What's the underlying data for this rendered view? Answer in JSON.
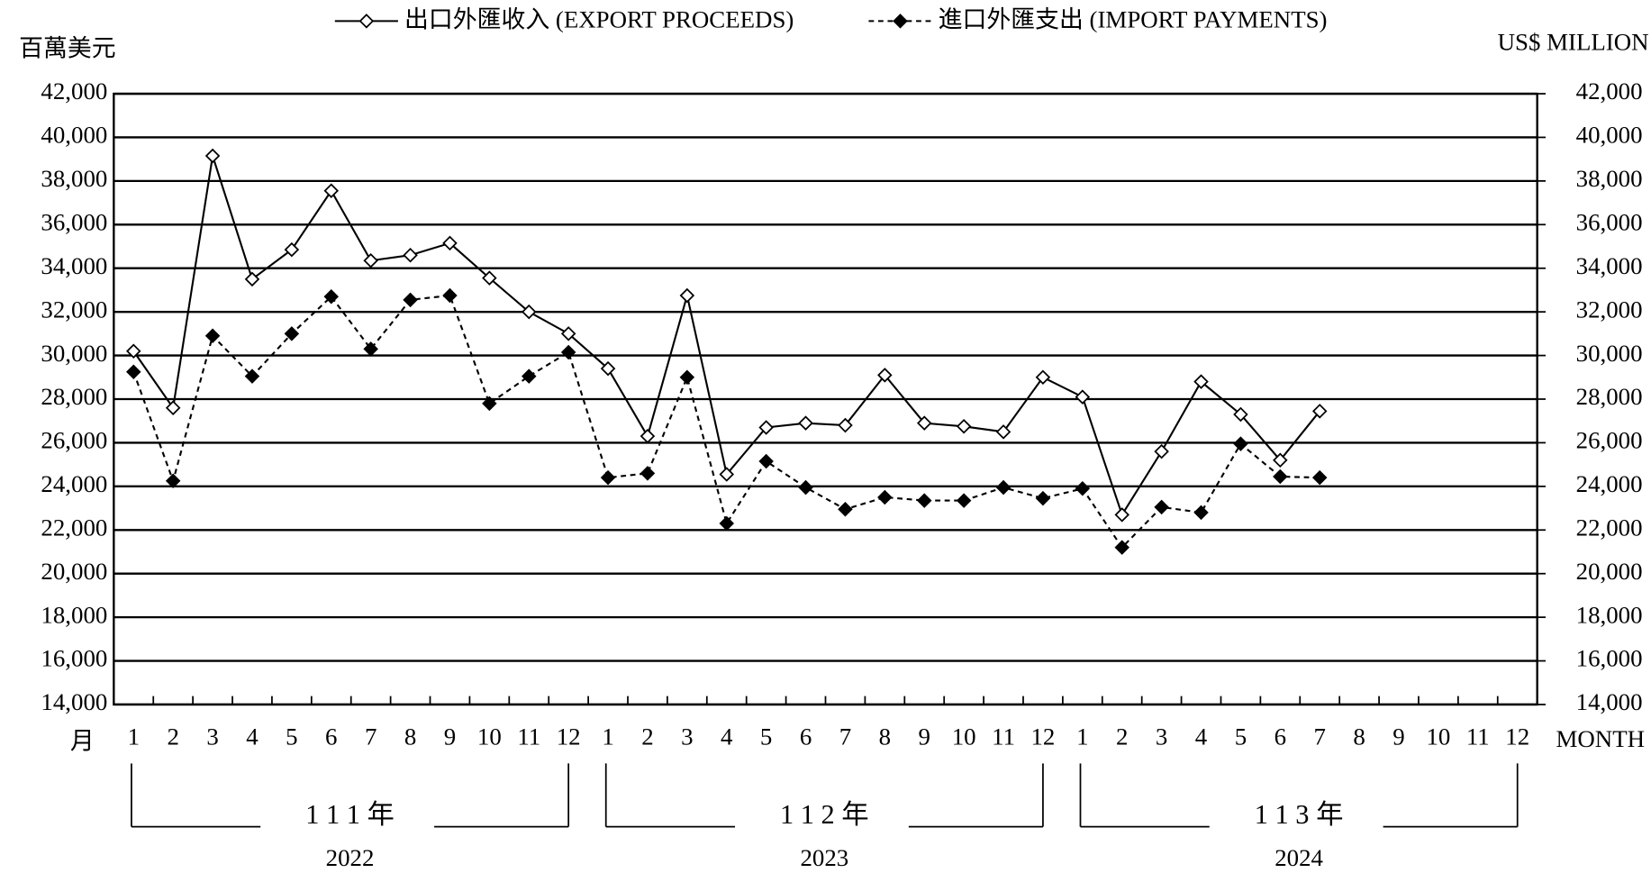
{
  "chart_data": {
    "type": "line",
    "y_label": "百萬美元",
    "y2_label": "US$ MILLION",
    "x_label": "月",
    "x2_label": "MONTH",
    "categories": [
      "1",
      "2",
      "3",
      "4",
      "5",
      "6",
      "7",
      "8",
      "9",
      "10",
      "11",
      "12",
      "1",
      "2",
      "3",
      "4",
      "5",
      "6",
      "7",
      "8",
      "9",
      "10",
      "11",
      "12",
      "1",
      "2",
      "3",
      "4",
      "5",
      "6",
      "7",
      "8",
      "9",
      "10",
      "11",
      "12"
    ],
    "groups": [
      {
        "label": "1 1 1 年",
        "year": "2022"
      },
      {
        "label": "1 1 2 年",
        "year": "2023"
      },
      {
        "label": "1 1 3 年",
        "year": "2024"
      }
    ],
    "series": [
      {
        "name": "出口外匯收入 (EXPORT PROCEEDS)",
        "color": "#000000",
        "line_style": "solid",
        "marker": "open-diamond",
        "values": [
          30200,
          27600,
          39150,
          33500,
          34850,
          37550,
          34350,
          34600,
          35150,
          33550,
          32000,
          31000,
          29400,
          26300,
          32750,
          24550,
          26700,
          26900,
          26800,
          29100,
          26900,
          26750,
          26500,
          29000,
          28100,
          22700,
          25600,
          28800,
          27300,
          25200,
          27450,
          null,
          null,
          null,
          null,
          null
        ]
      },
      {
        "name": "進口外匯支出 (IMPORT PAYMENTS)",
        "color": "#000000",
        "line_style": "dashed",
        "marker": "filled-diamond",
        "values": [
          29250,
          24250,
          30900,
          29050,
          31000,
          32700,
          30300,
          32550,
          32750,
          27800,
          29050,
          30150,
          24400,
          24600,
          29000,
          22300,
          25150,
          23950,
          22950,
          23500,
          23350,
          23350,
          23950,
          23450,
          23900,
          21200,
          23050,
          22800,
          25950,
          24450,
          24400,
          null,
          null,
          null,
          null,
          null
        ]
      }
    ],
    "ylim": [
      14000,
      42000
    ],
    "yticks": [
      {
        "value": 14000,
        "label": "14,000"
      },
      {
        "value": 16000,
        "label": "16,000"
      },
      {
        "value": 18000,
        "label": "18,000"
      },
      {
        "value": 20000,
        "label": "20,000"
      },
      {
        "value": 22000,
        "label": "22,000"
      },
      {
        "value": 24000,
        "label": "24,000"
      },
      {
        "value": 26000,
        "label": "26,000"
      },
      {
        "value": 28000,
        "label": "28,000"
      },
      {
        "value": 30000,
        "label": "30,000"
      },
      {
        "value": 32000,
        "label": "32,000"
      },
      {
        "value": 34000,
        "label": "34,000"
      },
      {
        "value": 36000,
        "label": "36,000"
      },
      {
        "value": 38000,
        "label": "38,000"
      },
      {
        "value": 40000,
        "label": "40,000"
      },
      {
        "value": 42000,
        "label": "42,000"
      }
    ],
    "y2lim": [
      14000,
      42000
    ],
    "y2ticks": [
      {
        "value": 14000,
        "label": "14,000"
      },
      {
        "value": 16000,
        "label": "16,000"
      },
      {
        "value": 18000,
        "label": "18,000"
      },
      {
        "value": 20000,
        "label": "20,000"
      },
      {
        "value": 22000,
        "label": "22,000"
      },
      {
        "value": 24000,
        "label": "24,000"
      },
      {
        "value": 26000,
        "label": "26,000"
      },
      {
        "value": 28000,
        "label": "28,000"
      },
      {
        "value": 30000,
        "label": "30,000"
      },
      {
        "value": 32000,
        "label": "32,000"
      },
      {
        "value": 34000,
        "label": "34,000"
      },
      {
        "value": 36000,
        "label": "36,000"
      },
      {
        "value": 38000,
        "label": "38,000"
      },
      {
        "value": 40000,
        "label": "40,000"
      },
      {
        "value": 42000,
        "label": "42,000"
      }
    ],
    "grid": true,
    "legend": "top"
  }
}
